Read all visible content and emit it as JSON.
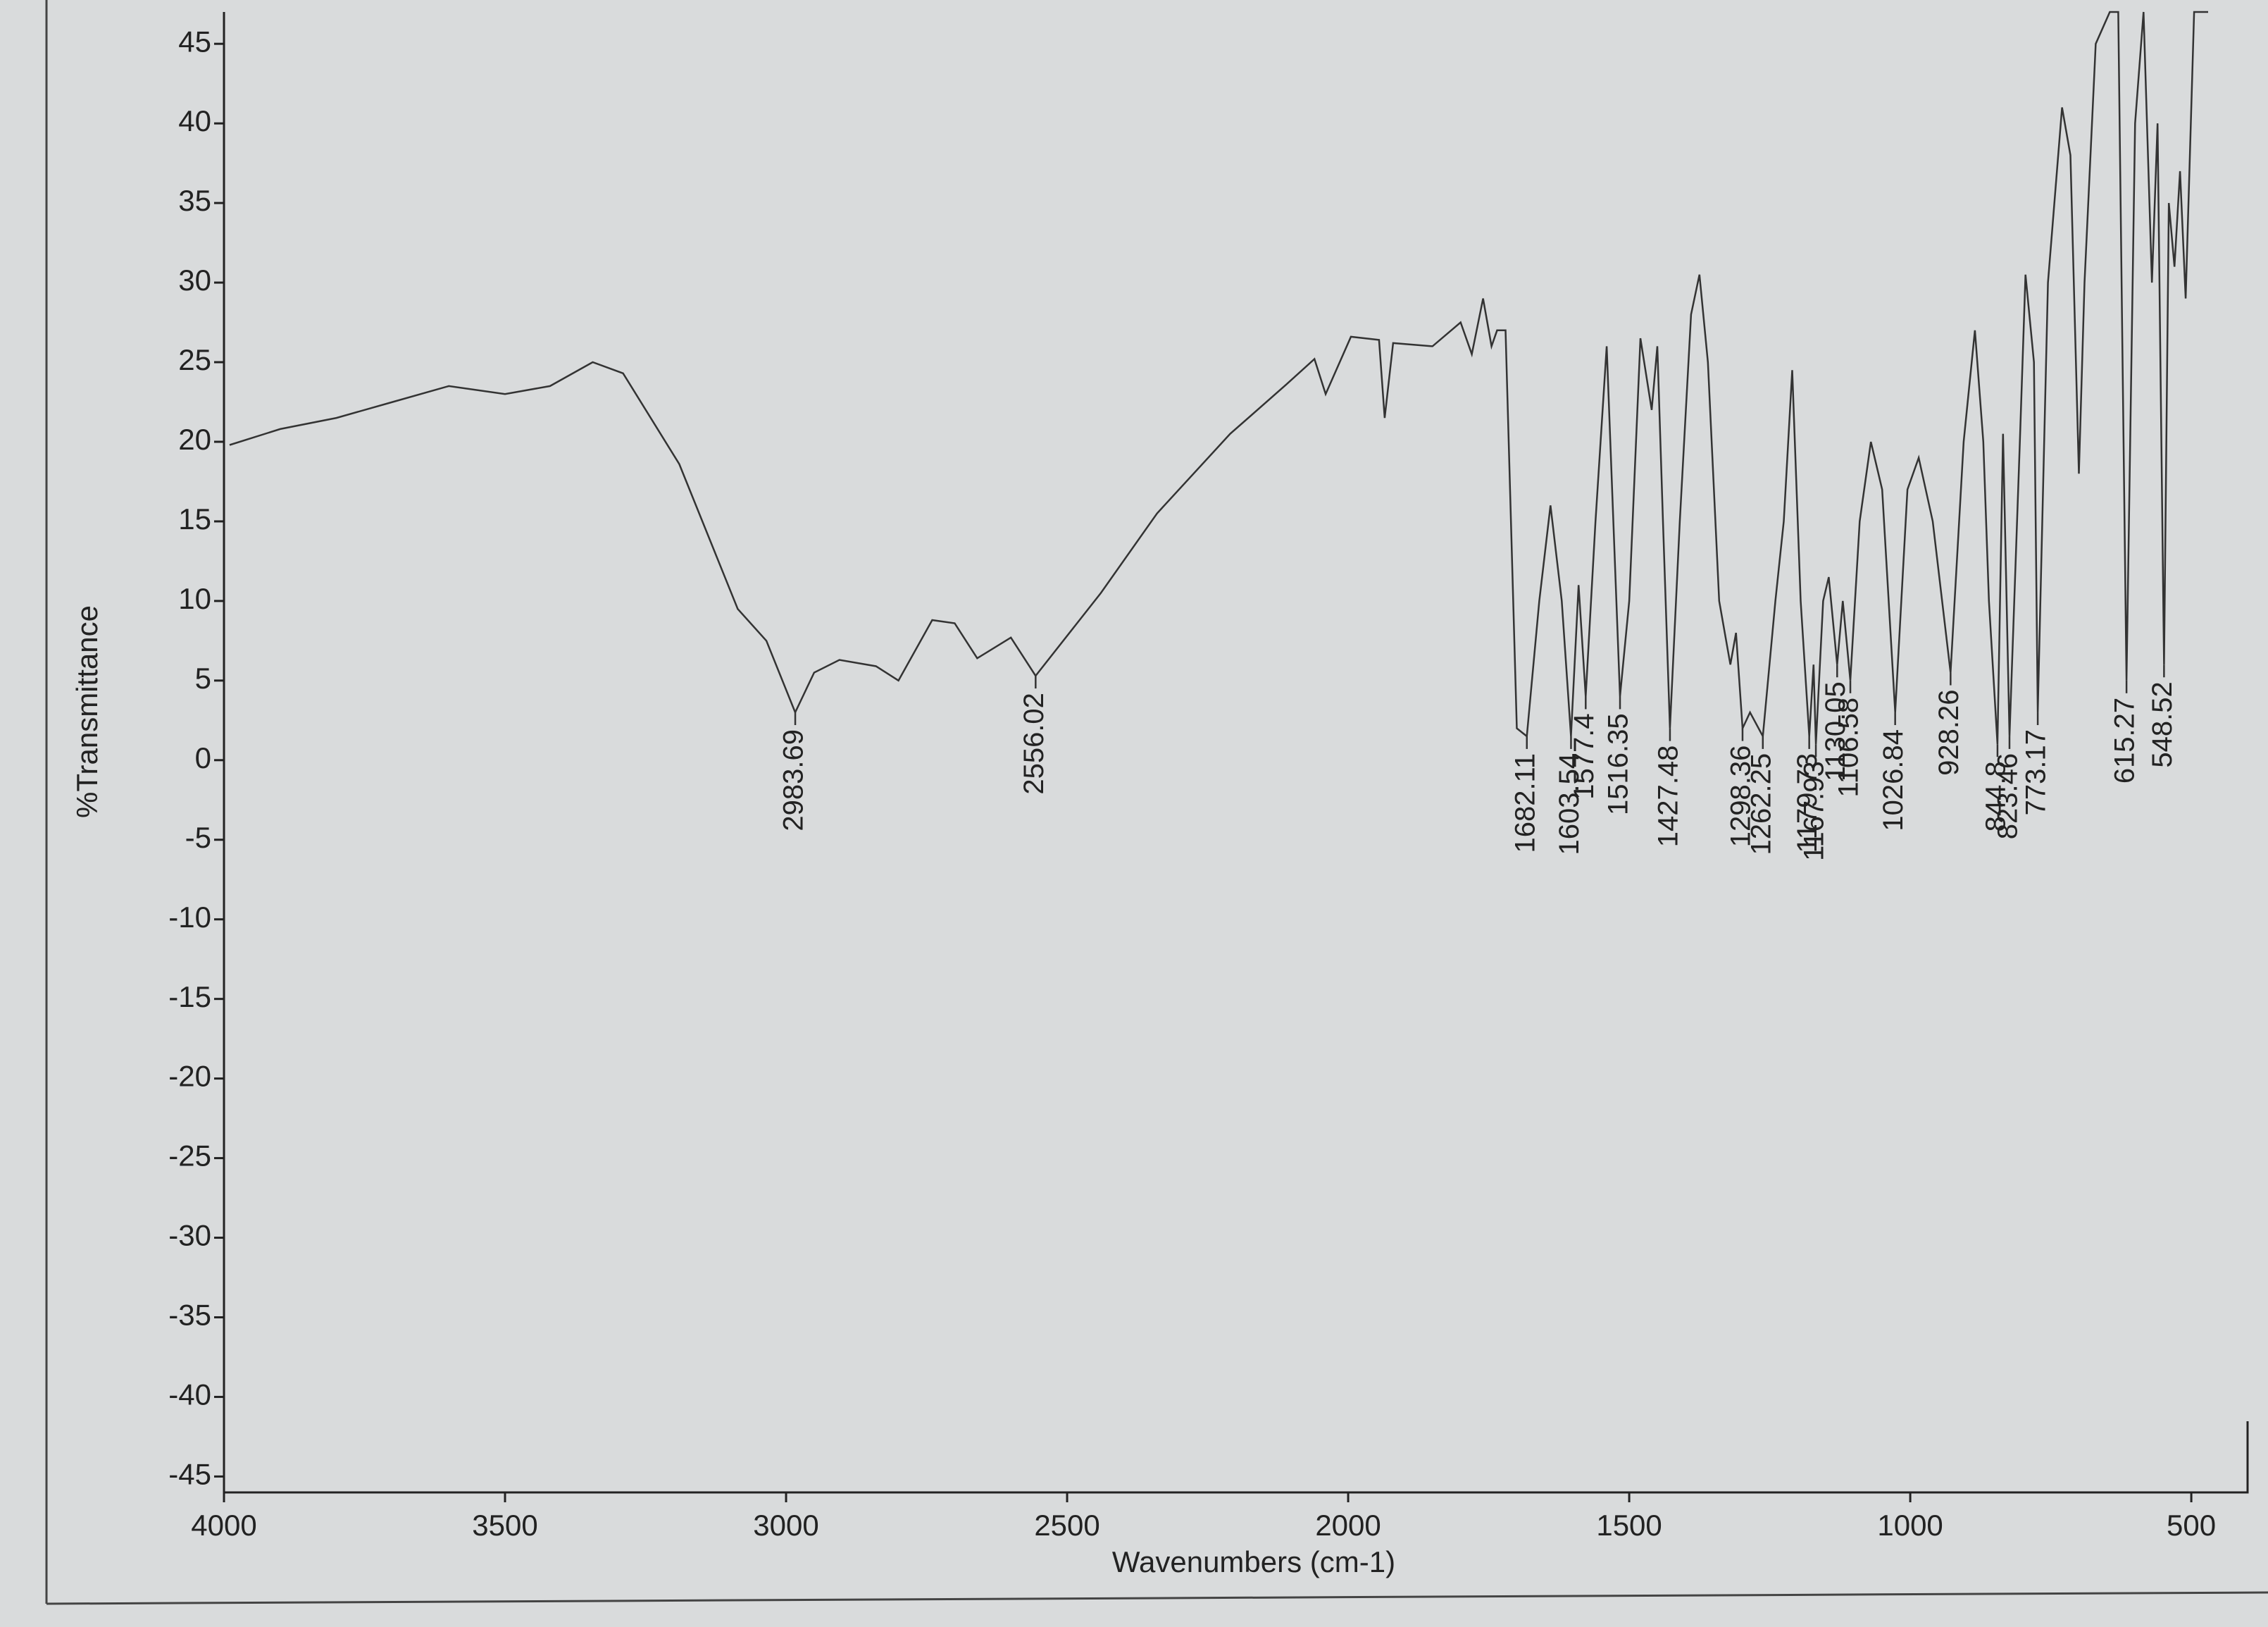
{
  "chart_data": {
    "type": "line",
    "xlabel": "Wavenumbers (cm-1)",
    "ylabel": "%Transmittance",
    "xlim": [
      4000,
      450
    ],
    "ylim": [
      -46,
      47
    ],
    "xticks": [
      4000,
      3500,
      3000,
      2500,
      2000,
      1500,
      1000,
      500
    ],
    "yticks": [
      -45,
      -40,
      -35,
      -30,
      -25,
      -20,
      -15,
      -10,
      -5,
      0,
      5,
      10,
      15,
      20,
      25,
      30,
      35,
      40,
      45
    ],
    "x": [
      3990,
      3900,
      3800,
      3700,
      3600,
      3500,
      3420,
      3344,
      3290,
      3190,
      3086,
      3035,
      2983.69,
      2950,
      2905,
      2840,
      2800,
      2740,
      2700,
      2660,
      2600,
      2556.02,
      2440,
      2340,
      2210,
      2110,
      2060,
      2040,
      1995,
      1945,
      1935,
      1920,
      1850,
      1800,
      1780,
      1760,
      1745,
      1735,
      1720,
      1700,
      1682.11,
      1660,
      1640,
      1620,
      1603.54,
      1590,
      1577.4,
      1560,
      1540,
      1516.35,
      1500,
      1480,
      1460,
      1450,
      1440,
      1427.48,
      1410,
      1390,
      1375,
      1360,
      1340,
      1320,
      1310,
      1298.36,
      1285,
      1262.25,
      1240,
      1225,
      1210,
      1195,
      1179.73,
      1172,
      1167.93,
      1155,
      1145,
      1130.05,
      1120,
      1106.58,
      1090,
      1070,
      1050,
      1026.84,
      1005,
      985,
      960,
      928.26,
      905,
      885,
      870,
      860,
      844.8,
      835,
      823.46,
      805,
      795,
      780,
      773.17,
      755,
      730,
      715,
      700,
      690,
      670,
      645,
      630,
      615.27,
      600,
      585,
      570,
      560,
      548.52,
      540,
      530,
      520,
      510,
      495,
      470
    ],
    "series": [
      {
        "color": "#333333",
        "values": [
          19.8,
          20.8,
          21.5,
          22.5,
          23.5,
          23,
          23.5,
          25,
          24.3,
          18.6,
          9.5,
          7.5,
          3,
          5.5,
          6.3,
          5.9,
          5,
          8.8,
          8.6,
          6.4,
          7.7,
          5.3,
          10.5,
          15.5,
          20.5,
          23.6,
          25.2,
          23,
          26.6,
          26.4,
          21.5,
          26.2,
          26,
          27.5,
          25.5,
          29,
          26,
          27,
          27,
          2,
          1.5,
          10,
          16,
          10,
          1.5,
          11,
          4,
          15,
          26,
          4,
          10,
          26.5,
          22,
          26,
          15,
          2,
          15,
          28,
          30.5,
          25,
          10,
          6,
          8,
          2,
          3,
          1.5,
          10,
          15,
          24.5,
          10,
          1.5,
          6,
          1,
          10,
          11.5,
          6,
          10,
          5,
          15,
          20,
          17,
          3,
          17,
          19,
          15,
          5.5,
          20,
          27,
          20,
          10,
          1,
          20.5,
          1.5,
          20,
          30.5,
          25,
          3,
          30,
          41,
          38,
          18,
          30,
          45,
          47,
          47,
          5,
          40,
          47,
          30,
          40,
          6,
          35,
          31,
          37,
          29,
          47,
          47
        ]
      }
    ],
    "peaks": {
      "x": [
        2983.69,
        2556.02,
        1682.11,
        1603.54,
        1577.4,
        1516.35,
        1427.48,
        1298.36,
        1262.25,
        1179.73,
        1167.93,
        1130.05,
        1106.58,
        1026.84,
        928.26,
        844.8,
        823.46,
        773.17,
        615.27,
        548.52
      ],
      "values": [
        3,
        5.3,
        1.5,
        1.5,
        4,
        4,
        2,
        2,
        1.5,
        1.5,
        1,
        6,
        5,
        3,
        5.5,
        1,
        1.5,
        3,
        5,
        6
      ]
    }
  }
}
